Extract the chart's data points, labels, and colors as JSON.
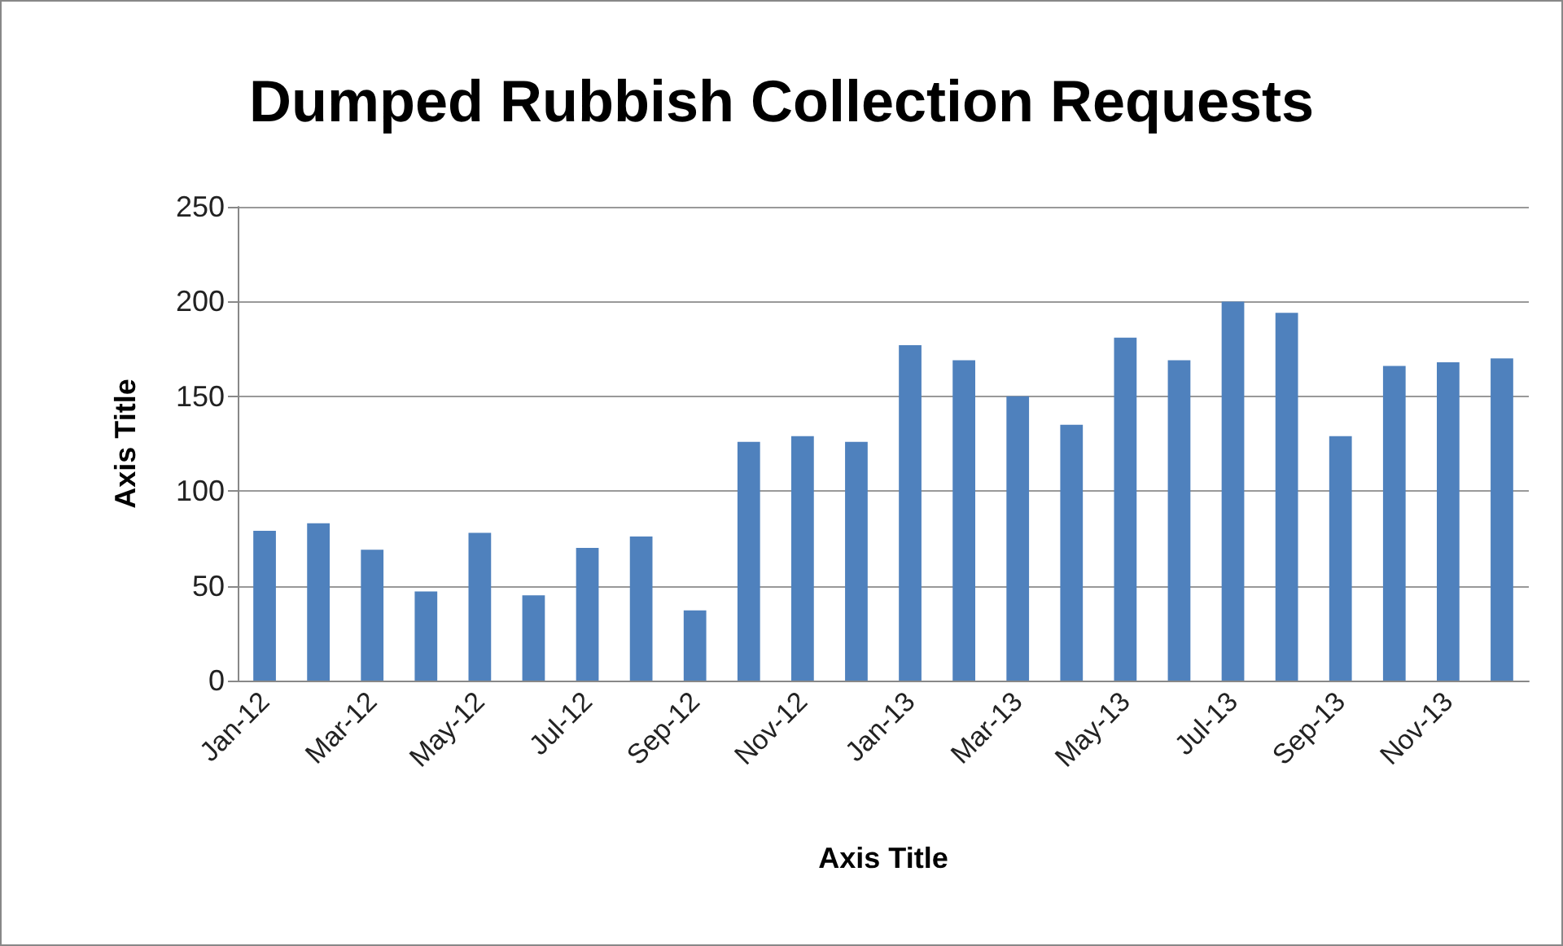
{
  "chart_data": {
    "type": "bar",
    "title": "Dumped Rubbish Collection Requests",
    "xlabel": "Axis Title",
    "ylabel": "Axis Title",
    "categories": [
      "Jan-12",
      null,
      "Mar-12",
      null,
      "May-12",
      null,
      "Jul-12",
      null,
      "Sep-12",
      null,
      "Nov-12",
      null,
      "Jan-13",
      null,
      "Mar-13",
      null,
      "May-13",
      null,
      "Jul-13",
      null,
      "Sep-13",
      null,
      "Nov-13",
      null
    ],
    "values": [
      79,
      83,
      69,
      47,
      78,
      45,
      70,
      76,
      37,
      126,
      129,
      126,
      177,
      169,
      150,
      135,
      181,
      169,
      200,
      194,
      129,
      166,
      168,
      170
    ],
    "color": "#4f81bd",
    "ylim": [
      0,
      250
    ],
    "yticks": [
      0,
      50,
      100,
      150,
      200,
      250
    ],
    "grid": "y"
  }
}
